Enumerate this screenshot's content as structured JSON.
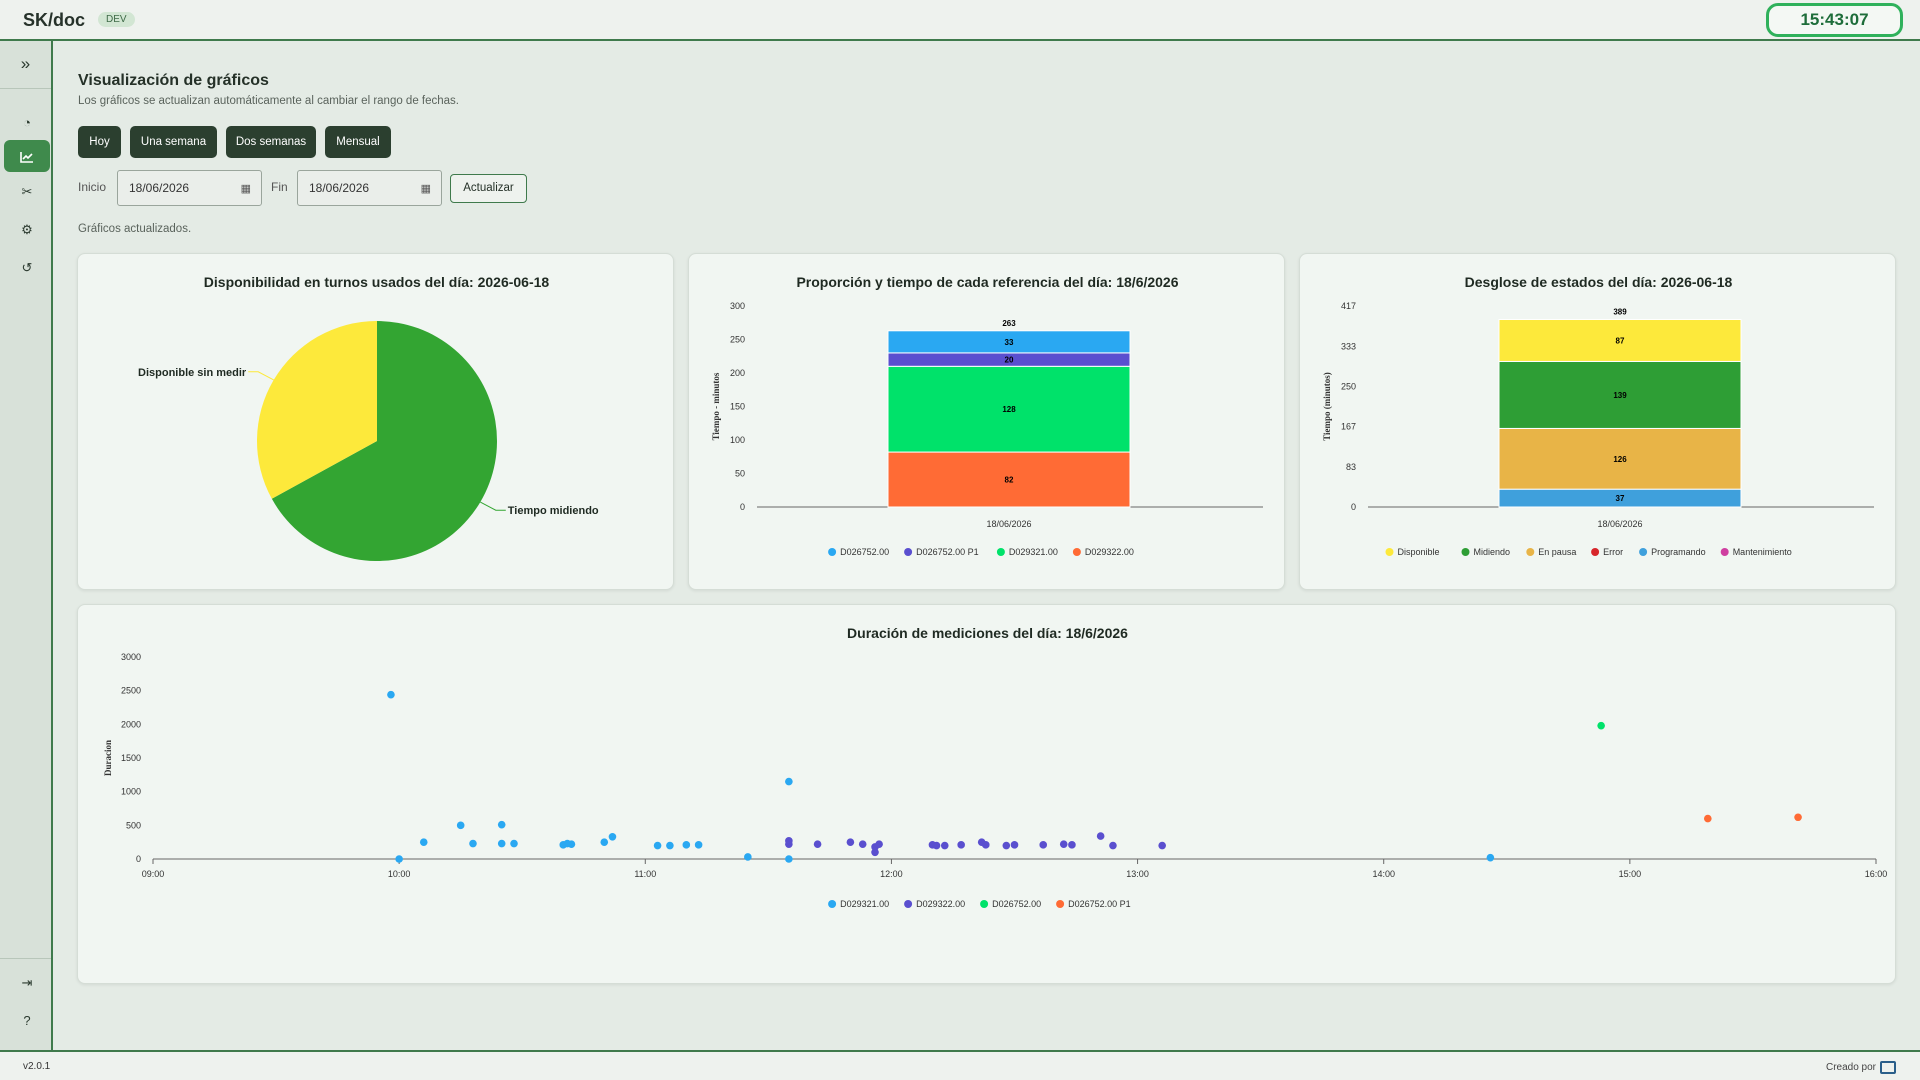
{
  "app": {
    "brand": "SK/doc",
    "env_badge": "DEV",
    "clock": "15:43:07"
  },
  "sidebar": {
    "toggle": "»",
    "items": [
      {
        "icon": "dashboard-icon",
        "glyph": "◔"
      },
      {
        "icon": "chart-icon",
        "glyph": "📈"
      },
      {
        "icon": "tools-icon",
        "glyph": "✂"
      },
      {
        "icon": "gear-icon",
        "glyph": "⚙"
      },
      {
        "icon": "history-icon",
        "glyph": "↺"
      }
    ],
    "bottom": [
      {
        "icon": "logout-icon",
        "glyph": "⇥"
      },
      {
        "icon": "help-icon",
        "glyph": "?"
      }
    ]
  },
  "page": {
    "title": "Visualización de gráficos",
    "subtitle": "Los gráficos se actualizan automáticamente al cambiar el rango de fechas.",
    "range_buttons": [
      "Hoy",
      "Una semana",
      "Dos semanas",
      "Mensual"
    ],
    "start_label": "Inicio",
    "start_value": "18/06/2026",
    "end_label": "Fin",
    "end_value": "18/06/2026",
    "refresh_label": "Actualizar",
    "status": "Gráficos actualizados."
  },
  "footer": {
    "version": "v2.0.1",
    "credit": "Creado por"
  },
  "chart_data": [
    {
      "type": "pie",
      "title": "Disponibilidad en turnos usados del día: 2026-06-18",
      "slices": [
        {
          "label": "Tiempo midiendo",
          "value": 67,
          "color": "#33a532"
        },
        {
          "label": "Disponible sin medir",
          "value": 33,
          "color": "#fde93b"
        }
      ]
    },
    {
      "type": "bar",
      "stacked": true,
      "title": "Proporción y tiempo de cada referencia del día: 18/6/2026",
      "categories": [
        "18/06/2026"
      ],
      "ylabel": "Tiempo - minutos",
      "ylim": [
        0,
        300
      ],
      "yticks": [
        0,
        50,
        100,
        150,
        200,
        250,
        300
      ],
      "total": 263,
      "series": [
        {
          "name": "D029322.00",
          "values": [
            82
          ],
          "color": "#ff6b35"
        },
        {
          "name": "D029321.00",
          "values": [
            128
          ],
          "color": "#00e26a"
        },
        {
          "name": "D026752.00 P1",
          "values": [
            20
          ],
          "color": "#5a4fcf"
        },
        {
          "name": "D026752.00",
          "values": [
            33
          ],
          "color": "#2aa8f2"
        }
      ],
      "legend_order": [
        "D026752.00",
        "D026752.00 P1",
        "D029321.00",
        "D029322.00"
      ]
    },
    {
      "type": "bar",
      "stacked": true,
      "title": "Desglose de estados del día: 2026-06-18",
      "categories": [
        "18/06/2026"
      ],
      "ylabel": "Tiempo (minutos)",
      "ylim": [
        0,
        417
      ],
      "yticks": [
        0,
        83,
        167,
        250,
        333,
        417
      ],
      "total": 389,
      "series": [
        {
          "name": "Programando",
          "values": [
            37
          ],
          "color": "#3fa0dc"
        },
        {
          "name": "En pausa",
          "values": [
            126
          ],
          "color": "#e8b447"
        },
        {
          "name": "Midiendo",
          "values": [
            139
          ],
          "color": "#2e9e35"
        },
        {
          "name": "Disponible",
          "values": [
            87
          ],
          "color": "#fde93b"
        },
        {
          "name": "Error",
          "values": [
            0
          ],
          "color": "#d7262b"
        },
        {
          "name": "Mantenimiento",
          "values": [
            0
          ],
          "color": "#cf3fa0"
        }
      ],
      "legend_order": [
        "Disponible",
        "Midiendo",
        "En pausa",
        "Error",
        "Programando",
        "Mantenimiento"
      ]
    },
    {
      "type": "scatter",
      "title": "Duración de mediciones del día: 18/6/2026",
      "ylabel": "Duracion",
      "xlim": [
        "09:00",
        "16:00"
      ],
      "xticks": [
        "09:00",
        "10:00",
        "11:00",
        "12:00",
        "13:00",
        "14:00",
        "15:00",
        "16:00"
      ],
      "ylim": [
        0,
        3000
      ],
      "yticks": [
        0,
        500,
        1000,
        1500,
        2000,
        2500,
        3000
      ],
      "series": [
        {
          "name": "D029321.00",
          "color": "#2aa8f2",
          "points": [
            [
              "09:58",
              2440
            ],
            [
              "10:00",
              0
            ],
            [
              "10:06",
              250
            ],
            [
              "10:15",
              500
            ],
            [
              "10:18",
              230
            ],
            [
              "10:25",
              510
            ],
            [
              "10:25",
              230
            ],
            [
              "10:28",
              230
            ],
            [
              "10:40",
              210
            ],
            [
              "10:41",
              230
            ],
            [
              "10:42",
              220
            ],
            [
              "10:50",
              250
            ],
            [
              "10:52",
              330
            ],
            [
              "11:03",
              200
            ],
            [
              "11:06",
              200
            ],
            [
              "11:10",
              210
            ],
            [
              "11:13",
              210
            ],
            [
              "11:25",
              30
            ],
            [
              "11:35",
              1150
            ],
            [
              "11:35",
              0
            ],
            [
              "14:26",
              20
            ]
          ]
        },
        {
          "name": "D029322.00",
          "color": "#5a4fcf",
          "points": [
            [
              "11:35",
              220
            ],
            [
              "11:35",
              270
            ],
            [
              "11:42",
              220
            ],
            [
              "11:50",
              250
            ],
            [
              "11:53",
              220
            ],
            [
              "11:56",
              100
            ],
            [
              "11:56",
              180
            ],
            [
              "11:57",
              220
            ],
            [
              "12:10",
              210
            ],
            [
              "12:11",
              200
            ],
            [
              "12:13",
              200
            ],
            [
              "12:17",
              210
            ],
            [
              "12:22",
              250
            ],
            [
              "12:23",
              210
            ],
            [
              "12:28",
              200
            ],
            [
              "12:30",
              210
            ],
            [
              "12:37",
              210
            ],
            [
              "12:42",
              220
            ],
            [
              "12:44",
              210
            ],
            [
              "12:51",
              340
            ],
            [
              "12:54",
              200
            ],
            [
              "13:06",
              200
            ]
          ]
        },
        {
          "name": "D026752.00",
          "color": "#00e26a",
          "points": [
            [
              "14:53",
              1980
            ]
          ]
        },
        {
          "name": "D026752.00 P1",
          "color": "#ff6b35",
          "points": [
            [
              "15:19",
              600
            ],
            [
              "15:41",
              620
            ]
          ]
        }
      ]
    }
  ]
}
